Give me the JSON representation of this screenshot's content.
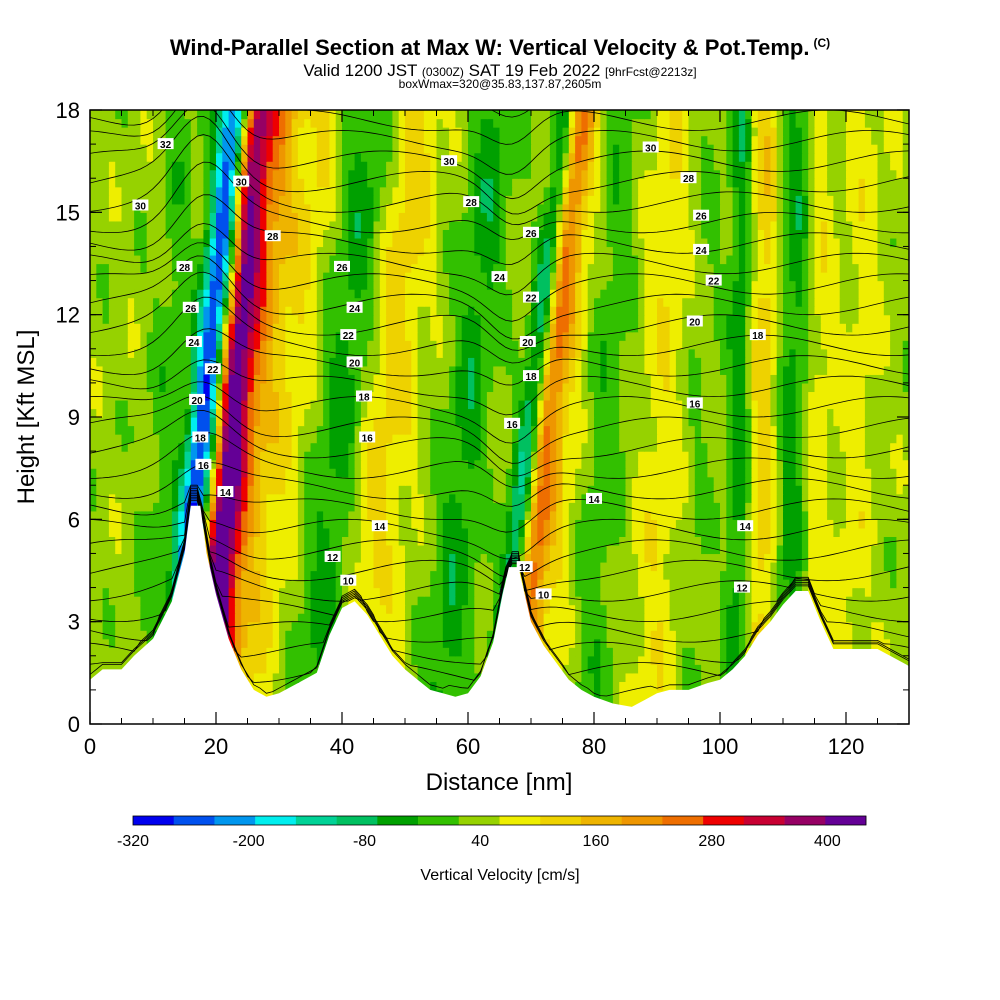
{
  "header": {
    "title": "Wind-Parallel Section at Max W: Vertical Velocity & Pot.Temp.",
    "copyright": "(C)",
    "valid_prefix": "Valid 1200 JST",
    "valid_utc": "(0300Z)",
    "valid_date": "SAT 19 Feb 2022",
    "forecast": "[9hrFcst@2213z]",
    "box_info": "boxWmax=320@35.83,137.87,2605m"
  },
  "chart_data": {
    "type": "heatmap",
    "title": "Wind-Parallel Section at Max W: Vertical Velocity & Pot.Temp.",
    "xlabel": "Distance [nm]",
    "ylabel": "Height [Kft MSL]",
    "xlim": [
      0,
      130
    ],
    "ylim": [
      0,
      18
    ],
    "x_ticks": [
      0,
      20,
      40,
      60,
      80,
      100,
      120
    ],
    "y_ticks": [
      0,
      3,
      6,
      9,
      12,
      15,
      18
    ],
    "colorbar": {
      "label": "Vertical Velocity [cm/s]",
      "tick_labels": [
        "-320",
        "-200",
        "-80",
        "40",
        "160",
        "280",
        "400"
      ],
      "tick_values": [
        -320,
        -200,
        -80,
        40,
        160,
        280,
        400
      ],
      "min": -320,
      "max": 440,
      "step": 40,
      "colors": [
        "#0000ee",
        "#0050ee",
        "#0096ee",
        "#00eeee",
        "#00d296",
        "#00c060",
        "#00a000",
        "#32c000",
        "#96d200",
        "#eeee00",
        "#eed200",
        "#eeb400",
        "#ee9600",
        "#ee6e00",
        "#ee0000",
        "#c80032",
        "#960064",
        "#640096"
      ]
    },
    "terrain_kft": [
      [
        0,
        1.3
      ],
      [
        2,
        1.6
      ],
      [
        5,
        1.6
      ],
      [
        7,
        2
      ],
      [
        10,
        2.5
      ],
      [
        13,
        3.6
      ],
      [
        15,
        5
      ],
      [
        16,
        6.4
      ],
      [
        17.5,
        6.4
      ],
      [
        18.5,
        5
      ],
      [
        20,
        3.8
      ],
      [
        22,
        2.5
      ],
      [
        24,
        1.6
      ],
      [
        26,
        1.0
      ],
      [
        28,
        0.8
      ],
      [
        30,
        0.9
      ],
      [
        33,
        1.2
      ],
      [
        36,
        1.5
      ],
      [
        38,
        2.6
      ],
      [
        40,
        3.4
      ],
      [
        42,
        3.6
      ],
      [
        44,
        3.2
      ],
      [
        46,
        2.6
      ],
      [
        48,
        2.0
      ],
      [
        50,
        1.6
      ],
      [
        52,
        1.3
      ],
      [
        54,
        1.0
      ],
      [
        56,
        0.9
      ],
      [
        58,
        0.8
      ],
      [
        60,
        0.9
      ],
      [
        62,
        1.4
      ],
      [
        64,
        2.4
      ],
      [
        65.5,
        3.8
      ],
      [
        66.5,
        4.6
      ],
      [
        68,
        4.6
      ],
      [
        69,
        3.8
      ],
      [
        70,
        3.0
      ],
      [
        72,
        2.3
      ],
      [
        74,
        1.8
      ],
      [
        76,
        1.3
      ],
      [
        78,
        1.0
      ],
      [
        80,
        0.8
      ],
      [
        83,
        0.6
      ],
      [
        86,
        0.5
      ],
      [
        88,
        0.7
      ],
      [
        90,
        0.9
      ],
      [
        92,
        1.0
      ],
      [
        95,
        1.0
      ],
      [
        98,
        1.2
      ],
      [
        100,
        1.3
      ],
      [
        102,
        1.6
      ],
      [
        104,
        2.0
      ],
      [
        106,
        2.6
      ],
      [
        108,
        3.0
      ],
      [
        110,
        3.5
      ],
      [
        112,
        3.9
      ],
      [
        114,
        3.9
      ],
      [
        116,
        3.0
      ],
      [
        118,
        2.2
      ],
      [
        121,
        2.2
      ],
      [
        125,
        2.2
      ],
      [
        127,
        2.0
      ],
      [
        130,
        1.7
      ]
    ],
    "velocity_bands": [
      {
        "x": 16.0,
        "lean": 0.55,
        "width": 2.4,
        "w": -320
      },
      {
        "x": 20.5,
        "lean": 0.45,
        "width": 2.6,
        "w": 300
      },
      {
        "x": 22.5,
        "lean": 0.6,
        "width": 3.5,
        "w": 150
      },
      {
        "x": 11.0,
        "lean": 0.3,
        "width": 3.0,
        "w": -40
      },
      {
        "x": 28.0,
        "lean": 0.7,
        "width": 4.0,
        "w": 60
      },
      {
        "x": 38.0,
        "lean": 0.5,
        "width": 4.0,
        "w": -80
      },
      {
        "x": 44.0,
        "lean": 0.6,
        "width": 4.0,
        "w": 70
      },
      {
        "x": 49.0,
        "lean": 0.3,
        "width": 3.0,
        "w": 20
      },
      {
        "x": 58.0,
        "lean": 0.5,
        "width": 3.5,
        "w": -80
      },
      {
        "x": 67.5,
        "lean": 0.65,
        "width": 2.0,
        "w": -160
      },
      {
        "x": 70.5,
        "lean": 0.55,
        "width": 2.2,
        "w": 180
      },
      {
        "x": 74.0,
        "lean": 0.4,
        "width": 3.5,
        "w": 60
      },
      {
        "x": 80.0,
        "lean": 0.3,
        "width": 3.5,
        "w": -50
      },
      {
        "x": 90.0,
        "lean": 0.2,
        "width": 3.5,
        "w": 50
      },
      {
        "x": 96.0,
        "lean": 0.2,
        "width": 2.5,
        "w": -20
      },
      {
        "x": 103.0,
        "lean": 0.05,
        "width": 2.0,
        "w": -90
      },
      {
        "x": 106.5,
        "lean": 0.05,
        "width": 2.5,
        "w": 90
      },
      {
        "x": 111.5,
        "lean": 0.1,
        "width": 2.8,
        "w": -90
      },
      {
        "x": 114.5,
        "lean": 0.1,
        "width": 2.5,
        "w": 60
      },
      {
        "x": 121.0,
        "lean": 0.2,
        "width": 3.0,
        "w": 40
      }
    ],
    "isentrope_labels": [
      {
        "text": "32",
        "x": 12,
        "y": 17.0
      },
      {
        "text": "30",
        "x": 8,
        "y": 15.2
      },
      {
        "text": "28",
        "x": 15,
        "y": 13.4
      },
      {
        "text": "26",
        "x": 16,
        "y": 12.2
      },
      {
        "text": "24",
        "x": 16.5,
        "y": 11.2
      },
      {
        "text": "22",
        "x": 19.5,
        "y": 10.4
      },
      {
        "text": "20",
        "x": 17,
        "y": 9.5
      },
      {
        "text": "18",
        "x": 17.5,
        "y": 8.4
      },
      {
        "text": "16",
        "x": 18,
        "y": 7.6
      },
      {
        "text": "14",
        "x": 21.5,
        "y": 6.8
      },
      {
        "text": "30",
        "x": 24,
        "y": 15.9
      },
      {
        "text": "28",
        "x": 29,
        "y": 14.3
      },
      {
        "text": "26",
        "x": 40,
        "y": 13.4
      },
      {
        "text": "24",
        "x": 42,
        "y": 12.2
      },
      {
        "text": "22",
        "x": 41,
        "y": 11.4
      },
      {
        "text": "20",
        "x": 42,
        "y": 10.6
      },
      {
        "text": "18",
        "x": 43.5,
        "y": 9.6
      },
      {
        "text": "16",
        "x": 44,
        "y": 8.4
      },
      {
        "text": "14",
        "x": 46,
        "y": 5.8
      },
      {
        "text": "12",
        "x": 38.5,
        "y": 4.9
      },
      {
        "text": "10",
        "x": 41,
        "y": 4.2
      },
      {
        "text": "30",
        "x": 57,
        "y": 16.5
      },
      {
        "text": "28",
        "x": 60.5,
        "y": 15.3
      },
      {
        "text": "26",
        "x": 70,
        "y": 14.4
      },
      {
        "text": "24",
        "x": 65,
        "y": 13.1
      },
      {
        "text": "22",
        "x": 70,
        "y": 12.5
      },
      {
        "text": "20",
        "x": 69.5,
        "y": 11.2
      },
      {
        "text": "18",
        "x": 70,
        "y": 10.2
      },
      {
        "text": "16",
        "x": 67,
        "y": 8.8
      },
      {
        "text": "12",
        "x": 69,
        "y": 4.6
      },
      {
        "text": "10",
        "x": 72,
        "y": 3.8
      },
      {
        "text": "30",
        "x": 89,
        "y": 16.9
      },
      {
        "text": "28",
        "x": 95,
        "y": 16.0
      },
      {
        "text": "26",
        "x": 97,
        "y": 14.9
      },
      {
        "text": "24",
        "x": 97,
        "y": 13.9
      },
      {
        "text": "22",
        "x": 99,
        "y": 13.0
      },
      {
        "text": "20",
        "x": 96,
        "y": 11.8
      },
      {
        "text": "18",
        "x": 106,
        "y": 11.4
      },
      {
        "text": "16",
        "x": 96,
        "y": 9.4
      },
      {
        "text": "14",
        "x": 80,
        "y": 6.6
      },
      {
        "text": "14",
        "x": 104,
        "y": 5.8
      },
      {
        "text": "12",
        "x": 103.5,
        "y": 4.0
      }
    ]
  }
}
